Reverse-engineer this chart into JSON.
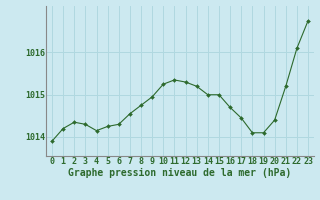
{
  "x": [
    0,
    1,
    2,
    3,
    4,
    5,
    6,
    7,
    8,
    9,
    10,
    11,
    12,
    13,
    14,
    15,
    16,
    17,
    18,
    19,
    20,
    21,
    22,
    23
  ],
  "y": [
    1013.9,
    1014.2,
    1014.35,
    1014.3,
    1014.15,
    1014.25,
    1014.3,
    1014.55,
    1014.75,
    1014.95,
    1015.25,
    1015.35,
    1015.3,
    1015.2,
    1015.0,
    1015.0,
    1014.7,
    1014.45,
    1014.1,
    1014.1,
    1014.4,
    1015.2,
    1016.1,
    1016.75
  ],
  "line_color": "#2d6a2d",
  "marker": "D",
  "markersize": 2.0,
  "linewidth": 0.8,
  "background_color": "#cce9f0",
  "grid_color": "#b0d8e0",
  "xlabel": "Graphe pression niveau de la mer (hPa)",
  "xlabel_fontsize": 7.0,
  "xlabel_color": "#2d6a2d",
  "xlabel_fontweight": "bold",
  "tick_color": "#2d6a2d",
  "tick_fontsize": 6.0,
  "ylim": [
    1013.55,
    1017.1
  ],
  "yticks": [
    1014,
    1015,
    1016
  ],
  "xlim": [
    -0.5,
    23.5
  ],
  "xticks": [
    0,
    1,
    2,
    3,
    4,
    5,
    6,
    7,
    8,
    9,
    10,
    11,
    12,
    13,
    14,
    15,
    16,
    17,
    18,
    19,
    20,
    21,
    22,
    23
  ]
}
